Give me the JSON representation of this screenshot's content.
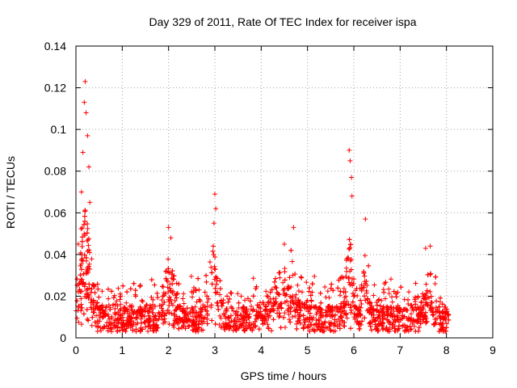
{
  "chart_data": {
    "type": "scatter",
    "title": "Day 329 of 2011, Rate Of TEC Index for receiver ispa",
    "xlabel": "GPS time / hours",
    "ylabel": "ROTI / TECUs",
    "xlim": [
      0,
      9
    ],
    "ylim": [
      0,
      0.14
    ],
    "x_ticks": [
      "0",
      "1",
      "2",
      "3",
      "4",
      "5",
      "6",
      "7",
      "8",
      "9"
    ],
    "y_ticks": [
      "0",
      "0.02",
      "0.04",
      "0.06",
      "0.08",
      "0.1",
      "0.12",
      "0.14"
    ],
    "grid": true,
    "marker": "+",
    "color": "#ff0000",
    "data_x_range": [
      0,
      8.05
    ],
    "peaks": [
      {
        "x": 0.2,
        "y": 0.123
      },
      {
        "x": 0.18,
        "y": 0.113
      },
      {
        "x": 0.22,
        "y": 0.108
      },
      {
        "x": 0.25,
        "y": 0.097
      },
      {
        "x": 0.15,
        "y": 0.089
      },
      {
        "x": 0.28,
        "y": 0.082
      },
      {
        "x": 0.12,
        "y": 0.07
      },
      {
        "x": 0.3,
        "y": 0.065
      },
      {
        "x": 0.05,
        "y": 0.045
      },
      {
        "x": 2.0,
        "y": 0.053
      },
      {
        "x": 2.05,
        "y": 0.048
      },
      {
        "x": 3.0,
        "y": 0.069
      },
      {
        "x": 3.02,
        "y": 0.062
      },
      {
        "x": 2.98,
        "y": 0.055
      },
      {
        "x": 4.7,
        "y": 0.053
      },
      {
        "x": 4.5,
        "y": 0.045
      },
      {
        "x": 5.9,
        "y": 0.09
      },
      {
        "x": 5.92,
        "y": 0.085
      },
      {
        "x": 5.95,
        "y": 0.077
      },
      {
        "x": 5.96,
        "y": 0.068
      },
      {
        "x": 6.25,
        "y": 0.057
      },
      {
        "x": 7.55,
        "y": 0.043
      },
      {
        "x": 7.65,
        "y": 0.044
      }
    ]
  }
}
